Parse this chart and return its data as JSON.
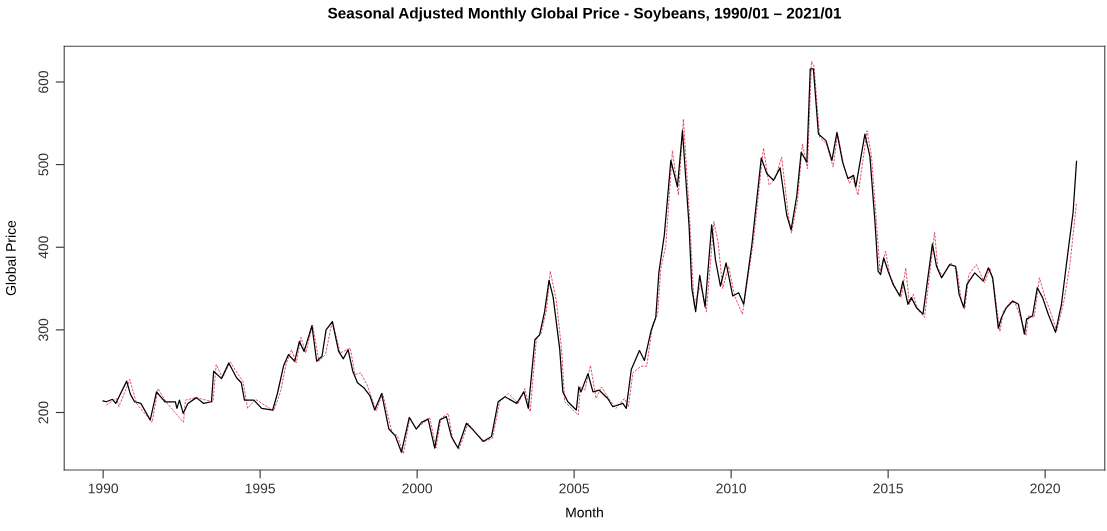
{
  "chart_data": {
    "type": "line",
    "title": "Seasonal Adjusted Monthly Global Price - Soybeans, 1990/01 – 2021/01",
    "xlabel": "Month",
    "ylabel": "Global Price",
    "xlim": [
      1988.76,
      2021.9
    ],
    "ylim": [
      130.5,
      643.3
    ],
    "xticks": [
      1990,
      1995,
      2000,
      2005,
      2010,
      2015,
      2020
    ],
    "yticks": [
      200,
      300,
      400,
      500,
      600
    ],
    "grid": false,
    "series": [
      {
        "color": "#e0304f",
        "line_style": "dashed",
        "x": [
          1990.1,
          1990.43,
          1990.5,
          1990.85,
          1991.06,
          1991.56,
          1991.75,
          1992.0,
          1992.56,
          1992.62,
          1992.95,
          1993.5,
          1993.6,
          1993.8,
          1994.05,
          1994.3,
          1994.45,
          1994.6,
          1994.85,
          1995.43,
          1995.65,
          1995.83,
          1996.0,
          1996.15,
          1996.3,
          1996.45,
          1996.67,
          1996.87,
          1997.08,
          1997.3,
          1997.55,
          1997.87,
          1998.02,
          1998.2,
          1998.4,
          1998.7,
          1998.9,
          1999.2,
          1999.37,
          1999.56,
          1999.77,
          1999.97,
          2000.4,
          2000.6,
          2000.76,
          2000.99,
          2001.13,
          2001.33,
          2001.62,
          2001.83,
          2002.15,
          2002.4,
          2002.63,
          2002.9,
          2003.22,
          2003.43,
          2003.6,
          2003.8,
          2003.95,
          2004.12,
          2004.24,
          2004.43,
          2004.6,
          2004.7,
          2005.13,
          2005.2,
          2005.34,
          2005.52,
          2005.7,
          2005.87,
          2006.17,
          2006.33,
          2006.6,
          2006.73,
          2006.87,
          2007.13,
          2007.31,
          2007.5,
          2007.66,
          2007.76,
          2007.92,
          2008.13,
          2008.32,
          2008.48,
          2008.68,
          2008.82,
          2009.03,
          2009.21,
          2009.45,
          2009.59,
          2009.73,
          2009.92,
          2010.11,
          2010.36,
          2010.71,
          2011.03,
          2011.21,
          2011.4,
          2011.61,
          2011.82,
          2011.92,
          2012.11,
          2012.27,
          2012.43,
          2012.56,
          2012.64,
          2012.82,
          2013.04,
          2013.25,
          2013.39,
          2013.6,
          2013.77,
          2013.87,
          2014.04,
          2014.33,
          2014.47,
          2014.63,
          2014.74,
          2014.92,
          2015.05,
          2015.2,
          2015.42,
          2015.56,
          2015.68,
          2015.8,
          2015.93,
          2016.16,
          2016.48,
          2016.58,
          2016.74,
          2017.0,
          2017.2,
          2017.33,
          2017.44,
          2017.57,
          2017.81,
          2018.07,
          2018.24,
          2018.36,
          2018.56,
          2018.67,
          2018.88,
          2019.04,
          2019.22,
          2019.39,
          2019.47,
          2019.65,
          2019.82,
          2020.0,
          2020.16,
          2020.37,
          2020.6,
          2020.79,
          2021.0
        ],
        "values": [
          209,
          217,
          207,
          240,
          211,
          188,
          229,
          213,
          188,
          215,
          218,
          213,
          258,
          242,
          261,
          246,
          238,
          205,
          216,
          202,
          225,
          259,
          276,
          260,
          291,
          272,
          306,
          262,
          270,
          311,
          272,
          278,
          246,
          248,
          234,
          202,
          223,
          176,
          172,
          150,
          194,
          180,
          194,
          157,
          193,
          199,
          167,
          155,
          187,
          177,
          165,
          169,
          213,
          223,
          211,
          229,
          201,
          290,
          296,
          324,
          371,
          336,
          277,
          213,
          197,
          231,
          227,
          257,
          217,
          231,
          213,
          205,
          217,
          207,
          248,
          256,
          256,
          307,
          319,
          374,
          402,
          517,
          463,
          555,
          434,
          330,
          354,
          322,
          431,
          405,
          350,
          377,
          341,
          319,
          407,
          520,
          475,
          483,
          509,
          439,
          417,
          455,
          525,
          495,
          625,
          619,
          533,
          525,
          497,
          537,
          497,
          477,
          485,
          463,
          541,
          510,
          429,
          371,
          395,
          367,
          353,
          339,
          375,
          331,
          343,
          325,
          315,
          418,
          375,
          365,
          381,
          371,
          335,
          325,
          367,
          379,
          357,
          375,
          355,
          298,
          323,
          333,
          333,
          315,
          293,
          317,
          315,
          363,
          339,
          323,
          299,
          335,
          379,
          454
        ]
      },
      {
        "color": "#000000",
        "line_style": "solid",
        "x": [
          1990.0,
          1990.1,
          1990.3,
          1990.4,
          1990.75,
          1990.87,
          1991.0,
          1991.2,
          1991.5,
          1991.7,
          1991.97,
          1992.3,
          1992.35,
          1992.43,
          1992.55,
          1992.7,
          1992.97,
          1993.2,
          1993.45,
          1993.52,
          1993.77,
          1994.0,
          1994.25,
          1994.4,
          1994.5,
          1994.8,
          1995.05,
          1995.4,
          1995.55,
          1995.75,
          1995.9,
          1996.1,
          1996.25,
          1996.4,
          1996.65,
          1996.8,
          1996.97,
          1997.1,
          1997.3,
          1997.5,
          1997.65,
          1997.8,
          1997.95,
          1998.1,
          1998.3,
          1998.5,
          1998.65,
          1998.87,
          1999.1,
          1999.3,
          1999.5,
          1999.75,
          1999.97,
          2000.14,
          2000.35,
          2000.56,
          2000.72,
          2000.93,
          2001.09,
          2001.3,
          2001.57,
          2001.78,
          2002.1,
          2002.37,
          2002.58,
          2002.8,
          2003.17,
          2003.4,
          2003.54,
          2003.75,
          2003.9,
          2004.06,
          2004.2,
          2004.33,
          2004.54,
          2004.64,
          2004.8,
          2005.07,
          2005.15,
          2005.22,
          2005.44,
          2005.6,
          2005.8,
          2006.07,
          2006.23,
          2006.55,
          2006.66,
          2006.82,
          2007.08,
          2007.24,
          2007.45,
          2007.6,
          2007.7,
          2007.87,
          2008.08,
          2008.29,
          2008.45,
          2008.66,
          2008.75,
          2008.87,
          2009.0,
          2009.17,
          2009.38,
          2009.5,
          2009.66,
          2009.84,
          2010.05,
          2010.24,
          2010.4,
          2010.66,
          2010.96,
          2011.14,
          2011.35,
          2011.56,
          2011.77,
          2011.91,
          2012.09,
          2012.23,
          2012.41,
          2012.52,
          2012.62,
          2012.78,
          2013.02,
          2013.21,
          2013.37,
          2013.55,
          2013.72,
          2013.9,
          2013.97,
          2014.26,
          2014.42,
          2014.58,
          2014.68,
          2014.76,
          2014.86,
          2015.0,
          2015.16,
          2015.37,
          2015.47,
          2015.63,
          2015.74,
          2015.9,
          2016.11,
          2016.41,
          2016.54,
          2016.7,
          2016.96,
          2017.15,
          2017.26,
          2017.41,
          2017.51,
          2017.76,
          2018.03,
          2018.19,
          2018.33,
          2018.51,
          2018.61,
          2018.77,
          2018.97,
          2019.15,
          2019.34,
          2019.41,
          2019.6,
          2019.75,
          2019.92,
          2020.1,
          2020.33,
          2020.52,
          2020.73,
          2020.89,
          2021.0
        ],
        "values": [
          214,
          213,
          216,
          211,
          238,
          222,
          213,
          211,
          191,
          225,
          213,
          213,
          205,
          215,
          199,
          211,
          218,
          211,
          213,
          250,
          241,
          260,
          242,
          236,
          215,
          215,
          205,
          203,
          223,
          257,
          270,
          262,
          286,
          274,
          305,
          262,
          268,
          300,
          310,
          274,
          265,
          276,
          250,
          236,
          230,
          220,
          203,
          223,
          180,
          172,
          152,
          194,
          180,
          188,
          192,
          157,
          191,
          195,
          171,
          157,
          187,
          179,
          165,
          171,
          213,
          219,
          211,
          225,
          205,
          288,
          294,
          322,
          360,
          340,
          277,
          225,
          213,
          203,
          231,
          225,
          247,
          225,
          227,
          217,
          207,
          211,
          205,
          252,
          275,
          263,
          299,
          315,
          370,
          414,
          505,
          473,
          541,
          426,
          350,
          322,
          366,
          328,
          427,
          385,
          353,
          381,
          341,
          345,
          331,
          403,
          508,
          489,
          481,
          496,
          439,
          421,
          462,
          515,
          503,
          616,
          616,
          537,
          529,
          505,
          539,
          503,
          483,
          487,
          473,
          537,
          510,
          431,
          371,
          367,
          387,
          371,
          355,
          341,
          359,
          331,
          339,
          327,
          319,
          404,
          377,
          363,
          379,
          377,
          343,
          327,
          355,
          369,
          359,
          375,
          363,
          302,
          315,
          327,
          335,
          331,
          295,
          313,
          317,
          351,
          339,
          319,
          297,
          331,
          395,
          442,
          504
        ]
      }
    ]
  }
}
